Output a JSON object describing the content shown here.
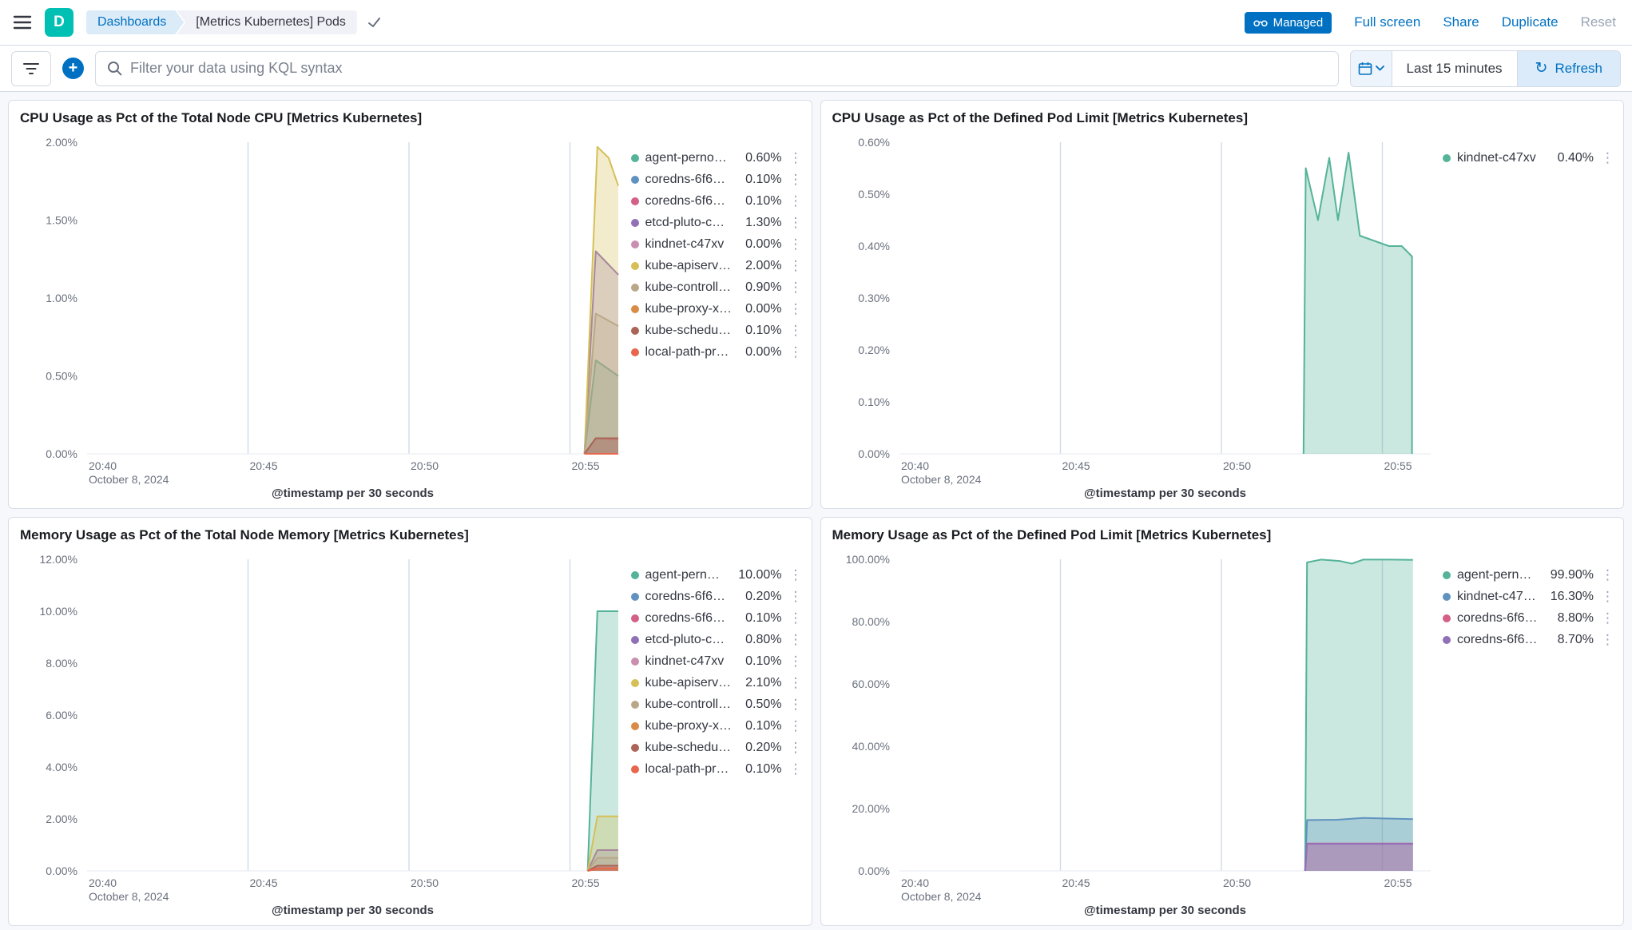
{
  "header": {
    "logo_letter": "D",
    "breadcrumbs": [
      {
        "label": "Dashboards"
      },
      {
        "label": "[Metrics Kubernetes] Pods"
      }
    ],
    "managed_label": "Managed",
    "links": {
      "full_screen": "Full screen",
      "share": "Share",
      "duplicate": "Duplicate",
      "reset": "Reset"
    }
  },
  "toolbar": {
    "search_placeholder": "Filter your data using KQL syntax",
    "time_range": "Last 15 minutes",
    "refresh_label": "Refresh"
  },
  "colors": {
    "primary": "#0071C2",
    "panel_border": "#D8DEE8",
    "gridline": "#D3DAE6",
    "axis_text": "#69707D"
  },
  "chart_data": [
    {
      "type": "area",
      "title": "CPU Usage as Pct of the Total Node CPU [Metrics Kubernetes]",
      "xlabel": "@timestamp per 30 seconds",
      "xlim": [
        0,
        16.5
      ],
      "ylim": [
        0,
        2
      ],
      "x_ticks": [
        {
          "pos": 0,
          "label": "20:40",
          "sub": "October 8, 2024"
        },
        {
          "pos": 5,
          "label": "20:45"
        },
        {
          "pos": 10,
          "label": "20:50"
        },
        {
          "pos": 15,
          "label": "20:55"
        }
      ],
      "y_ticks": [
        {
          "v": 0,
          "label": "0.00%"
        },
        {
          "v": 0.5,
          "label": "0.50%"
        },
        {
          "v": 1,
          "label": "1.00%"
        },
        {
          "v": 1.5,
          "label": "1.50%"
        },
        {
          "v": 2,
          "label": "2.00%"
        }
      ],
      "legend": [
        {
          "label": "agent-perno…",
          "value": "0.60%",
          "color": "#54B399"
        },
        {
          "label": "coredns-6f6…",
          "value": "0.10%",
          "color": "#6092C0"
        },
        {
          "label": "coredns-6f6…",
          "value": "0.10%",
          "color": "#D36086"
        },
        {
          "label": "etcd-pluto-c…",
          "value": "1.30%",
          "color": "#9170B8"
        },
        {
          "label": "kindnet-c47xv",
          "value": "0.00%",
          "color": "#CA8EAE"
        },
        {
          "label": "kube-apiserv…",
          "value": "2.00%",
          "color": "#D6BF57"
        },
        {
          "label": "kube-controll…",
          "value": "0.90%",
          "color": "#B9A888"
        },
        {
          "label": "kube-proxy-x…",
          "value": "0.00%",
          "color": "#DA8B45"
        },
        {
          "label": "kube-schedu…",
          "value": "0.10%",
          "color": "#AA6556"
        },
        {
          "label": "local-path-pr…",
          "value": "0.00%",
          "color": "#E7664C"
        }
      ],
      "series": [
        {
          "name": "agent-perno…",
          "color": "#54B399",
          "points": [
            [
              15.45,
              0
            ],
            [
              15.8,
              0.6
            ],
            [
              16.5,
              0.5
            ]
          ]
        },
        {
          "name": "coredns-6f6…",
          "color": "#6092C0",
          "points": [
            [
              15.45,
              0
            ],
            [
              15.8,
              0.1
            ],
            [
              16.5,
              0.1
            ]
          ]
        },
        {
          "name": "coredns-6f6…",
          "color": "#D36086",
          "points": [
            [
              15.45,
              0
            ],
            [
              15.8,
              0.1
            ],
            [
              16.5,
              0.09
            ]
          ]
        },
        {
          "name": "etcd-pluto-c…",
          "color": "#9170B8",
          "points": [
            [
              15.45,
              0
            ],
            [
              15.8,
              1.3
            ],
            [
              16.5,
              1.15
            ]
          ]
        },
        {
          "name": "kindnet-c47xv",
          "color": "#CA8EAE",
          "points": [
            [
              15.45,
              0
            ],
            [
              16.5,
              0
            ]
          ]
        },
        {
          "name": "kube-apiserv…",
          "color": "#D6BF57",
          "points": [
            [
              15.45,
              0
            ],
            [
              15.85,
              1.97
            ],
            [
              16.2,
              1.9
            ],
            [
              16.5,
              1.72
            ]
          ]
        },
        {
          "name": "kube-controll…",
          "color": "#B9A888",
          "points": [
            [
              15.45,
              0
            ],
            [
              15.8,
              0.9
            ],
            [
              16.5,
              0.82
            ]
          ]
        },
        {
          "name": "kube-proxy-x…",
          "color": "#DA8B45",
          "points": [
            [
              15.45,
              0
            ],
            [
              16.5,
              0
            ]
          ]
        },
        {
          "name": "kube-schedu…",
          "color": "#AA6556",
          "points": [
            [
              15.45,
              0
            ],
            [
              15.8,
              0.1
            ],
            [
              16.5,
              0.1
            ]
          ]
        },
        {
          "name": "local-path-pr…",
          "color": "#E7664C",
          "points": [
            [
              15.45,
              0
            ],
            [
              16.5,
              0
            ]
          ]
        }
      ]
    },
    {
      "type": "area",
      "title": "CPU Usage as Pct of the Defined Pod Limit [Metrics Kubernetes]",
      "xlabel": "@timestamp per 30 seconds",
      "xlim": [
        0,
        16.5
      ],
      "ylim": [
        0,
        0.6
      ],
      "x_ticks": [
        {
          "pos": 0,
          "label": "20:40",
          "sub": "October 8, 2024"
        },
        {
          "pos": 5,
          "label": "20:45"
        },
        {
          "pos": 10,
          "label": "20:50"
        },
        {
          "pos": 15,
          "label": "20:55"
        }
      ],
      "y_ticks": [
        {
          "v": 0,
          "label": "0.00%"
        },
        {
          "v": 0.1,
          "label": "0.10%"
        },
        {
          "v": 0.2,
          "label": "0.20%"
        },
        {
          "v": 0.3,
          "label": "0.30%"
        },
        {
          "v": 0.4,
          "label": "0.40%"
        },
        {
          "v": 0.5,
          "label": "0.50%"
        },
        {
          "v": 0.6,
          "label": "0.60%"
        }
      ],
      "legend": [
        {
          "label": "kindnet-c47xv",
          "value": "0.40%",
          "color": "#54B399"
        }
      ],
      "series": [
        {
          "name": "kindnet-c47xv",
          "color": "#54B399",
          "points": [
            [
              12.55,
              0
            ],
            [
              12.62,
              0.55
            ],
            [
              13.0,
              0.45
            ],
            [
              13.35,
              0.57
            ],
            [
              13.62,
              0.45
            ],
            [
              13.95,
              0.58
            ],
            [
              14.3,
              0.42
            ],
            [
              14.75,
              0.41
            ],
            [
              15.2,
              0.4
            ],
            [
              15.6,
              0.4
            ],
            [
              15.92,
              0.38
            ],
            [
              15.92,
              0
            ]
          ]
        }
      ]
    },
    {
      "type": "area",
      "title": "Memory Usage as Pct of the Total Node Memory [Metrics Kubernetes]",
      "xlabel": "@timestamp per 30 seconds",
      "xlim": [
        0,
        16.5
      ],
      "ylim": [
        0,
        12
      ],
      "x_ticks": [
        {
          "pos": 0,
          "label": "20:40",
          "sub": "October 8, 2024"
        },
        {
          "pos": 5,
          "label": "20:45"
        },
        {
          "pos": 10,
          "label": "20:50"
        },
        {
          "pos": 15,
          "label": "20:55"
        }
      ],
      "y_ticks": [
        {
          "v": 0,
          "label": "0.00%"
        },
        {
          "v": 2,
          "label": "2.00%"
        },
        {
          "v": 4,
          "label": "4.00%"
        },
        {
          "v": 6,
          "label": "6.00%"
        },
        {
          "v": 8,
          "label": "8.00%"
        },
        {
          "v": 10,
          "label": "10.00%"
        },
        {
          "v": 12,
          "label": "12.00%"
        }
      ],
      "legend": [
        {
          "label": "agent-pern…",
          "value": "10.00%",
          "color": "#54B399"
        },
        {
          "label": "coredns-6f6…",
          "value": "0.20%",
          "color": "#6092C0"
        },
        {
          "label": "coredns-6f6…",
          "value": "0.10%",
          "color": "#D36086"
        },
        {
          "label": "etcd-pluto-c…",
          "value": "0.80%",
          "color": "#9170B8"
        },
        {
          "label": "kindnet-c47xv",
          "value": "0.10%",
          "color": "#CA8EAE"
        },
        {
          "label": "kube-apiserv…",
          "value": "2.10%",
          "color": "#D6BF57"
        },
        {
          "label": "kube-controll…",
          "value": "0.50%",
          "color": "#B9A888"
        },
        {
          "label": "kube-proxy-x…",
          "value": "0.10%",
          "color": "#DA8B45"
        },
        {
          "label": "kube-schedu…",
          "value": "0.20%",
          "color": "#AA6556"
        },
        {
          "label": "local-path-pr…",
          "value": "0.10%",
          "color": "#E7664C"
        }
      ],
      "series": [
        {
          "name": "agent-pern…",
          "color": "#54B399",
          "points": [
            [
              15.55,
              0
            ],
            [
              15.85,
              10
            ],
            [
              16.5,
              10
            ]
          ]
        },
        {
          "name": "coredns-6f6…",
          "color": "#6092C0",
          "points": [
            [
              15.55,
              0
            ],
            [
              15.85,
              0.2
            ],
            [
              16.5,
              0.2
            ]
          ]
        },
        {
          "name": "coredns-6f6…",
          "color": "#D36086",
          "points": [
            [
              15.55,
              0
            ],
            [
              15.85,
              0.1
            ],
            [
              16.5,
              0.1
            ]
          ]
        },
        {
          "name": "etcd-pluto-c…",
          "color": "#9170B8",
          "points": [
            [
              15.55,
              0
            ],
            [
              15.85,
              0.8
            ],
            [
              16.5,
              0.8
            ]
          ]
        },
        {
          "name": "kindnet-c47xv",
          "color": "#CA8EAE",
          "points": [
            [
              15.55,
              0
            ],
            [
              15.85,
              0.1
            ],
            [
              16.5,
              0.1
            ]
          ]
        },
        {
          "name": "kube-apiserv…",
          "color": "#D6BF57",
          "points": [
            [
              15.55,
              0
            ],
            [
              15.85,
              2.1
            ],
            [
              16.5,
              2.1
            ]
          ]
        },
        {
          "name": "kube-controll…",
          "color": "#B9A888",
          "points": [
            [
              15.55,
              0
            ],
            [
              15.85,
              0.5
            ],
            [
              16.5,
              0.5
            ]
          ]
        },
        {
          "name": "kube-proxy-x…",
          "color": "#DA8B45",
          "points": [
            [
              15.55,
              0
            ],
            [
              15.85,
              0.1
            ],
            [
              16.5,
              0.1
            ]
          ]
        },
        {
          "name": "kube-schedu…",
          "color": "#AA6556",
          "points": [
            [
              15.55,
              0
            ],
            [
              15.85,
              0.2
            ],
            [
              16.5,
              0.2
            ]
          ]
        },
        {
          "name": "local-path-pr…",
          "color": "#E7664C",
          "points": [
            [
              15.55,
              0
            ],
            [
              15.85,
              0.1
            ],
            [
              16.5,
              0.1
            ]
          ]
        }
      ]
    },
    {
      "type": "area",
      "title": "Memory Usage as Pct of the Defined Pod Limit [Metrics Kubernetes]",
      "xlabel": "@timestamp per 30 seconds",
      "xlim": [
        0,
        16.5
      ],
      "ylim": [
        0,
        100
      ],
      "x_ticks": [
        {
          "pos": 0,
          "label": "20:40",
          "sub": "October 8, 2024"
        },
        {
          "pos": 5,
          "label": "20:45"
        },
        {
          "pos": 10,
          "label": "20:50"
        },
        {
          "pos": 15,
          "label": "20:55"
        }
      ],
      "y_ticks": [
        {
          "v": 0,
          "label": "0.00%"
        },
        {
          "v": 20,
          "label": "20.00%"
        },
        {
          "v": 40,
          "label": "40.00%"
        },
        {
          "v": 60,
          "label": "60.00%"
        },
        {
          "v": 80,
          "label": "80.00%"
        },
        {
          "v": 100,
          "label": "100.00%"
        }
      ],
      "legend": [
        {
          "label": "agent-pern…",
          "value": "99.90%",
          "color": "#54B399"
        },
        {
          "label": "kindnet-c47…",
          "value": "16.30%",
          "color": "#6092C0"
        },
        {
          "label": "coredns-6f6…",
          "value": "8.80%",
          "color": "#D36086"
        },
        {
          "label": "coredns-6f6…",
          "value": "8.70%",
          "color": "#9170B8"
        }
      ],
      "series": [
        {
          "name": "agent-pern…",
          "color": "#54B399",
          "points": [
            [
              12.6,
              0
            ],
            [
              12.66,
              99
            ],
            [
              13.1,
              99.9
            ],
            [
              13.7,
              99.4
            ],
            [
              14.05,
              98.6
            ],
            [
              14.4,
              99.9
            ],
            [
              15.2,
              99.9
            ],
            [
              15.95,
              99.8
            ]
          ]
        },
        {
          "name": "kindnet-c47…",
          "color": "#6092C0",
          "points": [
            [
              12.6,
              0
            ],
            [
              12.66,
              16.3
            ],
            [
              13.6,
              16.4
            ],
            [
              14.4,
              17.0
            ],
            [
              15.95,
              16.6
            ]
          ]
        },
        {
          "name": "coredns-6f6…",
          "color": "#D36086",
          "points": [
            [
              12.6,
              0
            ],
            [
              12.66,
              8.8
            ],
            [
              15.95,
              8.8
            ]
          ]
        },
        {
          "name": "coredns-6f6…",
          "color": "#9170B8",
          "points": [
            [
              12.6,
              0
            ],
            [
              12.66,
              8.7
            ],
            [
              15.95,
              8.7
            ]
          ]
        }
      ]
    }
  ]
}
